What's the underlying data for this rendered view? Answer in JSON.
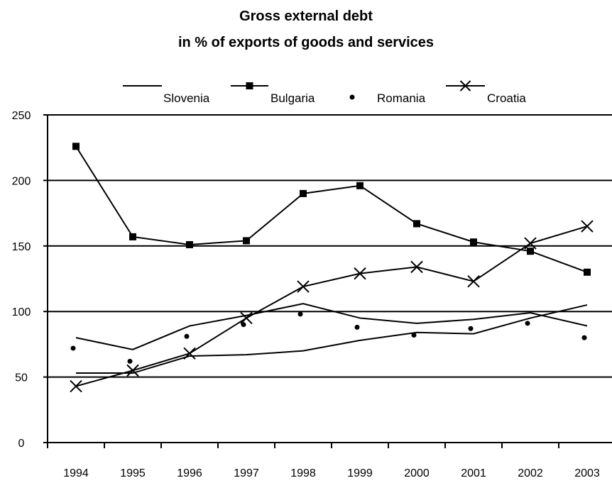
{
  "chart_data": {
    "type": "line",
    "title": "Gross external debt",
    "subtitle": "in % of exports of goods and services",
    "xlabel": "",
    "ylabel": "",
    "x": [
      "1994",
      "1995",
      "1996",
      "1997",
      "1998",
      "1999",
      "2000",
      "2001",
      "2002",
      "2003"
    ],
    "ylim": [
      0,
      250
    ],
    "yticks": [
      "0",
      "50",
      "100",
      "150",
      "200",
      "250"
    ],
    "grid": "horizontal",
    "legend": "top",
    "series": [
      {
        "name": "Slovenia",
        "marker": "none",
        "values": [
          53,
          53,
          66,
          67,
          70,
          78,
          84,
          83,
          95,
          105
        ]
      },
      {
        "name": "Bulgaria",
        "marker": "square",
        "values": [
          226,
          157,
          151,
          154,
          190,
          196,
          167,
          153,
          146,
          130
        ]
      },
      {
        "name": "Romania",
        "marker": "dot",
        "values": [
          72,
          62,
          81,
          90,
          98,
          88,
          82,
          87,
          91,
          80
        ]
      },
      {
        "name": "Croatia",
        "marker": "x",
        "values": [
          43,
          55,
          68,
          95,
          119,
          129,
          134,
          123,
          152,
          165
        ]
      },
      {
        "name": "",
        "marker": "none",
        "values": [
          80,
          71,
          89,
          97,
          106,
          95,
          91,
          94,
          99,
          89
        ]
      }
    ]
  }
}
